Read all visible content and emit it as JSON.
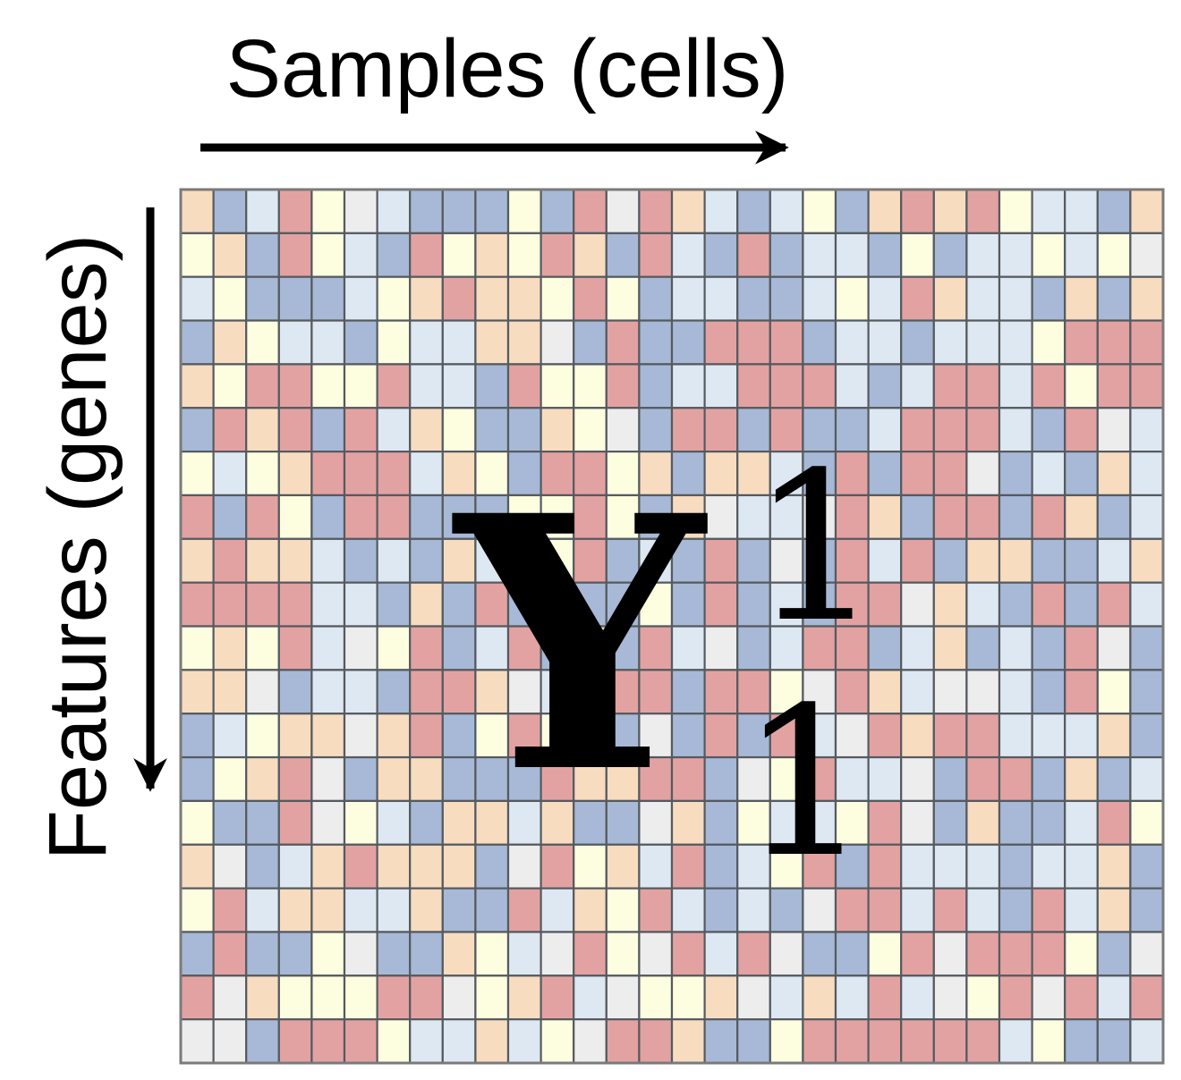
{
  "labels": {
    "x_axis": "Samples (cells)",
    "y_axis": "Features (genes)"
  },
  "matrix_symbol": {
    "base": "Y",
    "superscript": "1",
    "subscript": "1"
  },
  "matrix": {
    "rows": 20,
    "cols": 30,
    "palette": {
      "R": "#e3a2a2",
      "O": "#f8dcc0",
      "Y": "#fdfde0",
      "W": "#ededed",
      "L": "#dde8f2",
      "B": "#a7b9d6"
    },
    "cells": [
      "OBLRYWLBBBYBRWROLBLYBORORYLLBO",
      "YOBRYLBRYOYROBRLBRBLLBYBLLYLYW",
      "LYBBBLYOROOYRYBLLBBLYLROLLBOBO",
      "BOYLLBYLLOOWBRBBRRRBLLBLLLYRRR",
      "OYRRYYRLLBRYYRBLLRRRLBLRRLRYRR",
      "BRORBRLOYBBOYWBRRBRBBLRRRLBRWL",
      "YLYORRRLOYBRRYOBOOLBRBRRWBLBOL",
      "RBRYBRRBBBYYRYBOWLLWROBRRBROBL",
      "OROOLBLBOLYYRBLBRBWBRLRBOOBBLO",
      "RRRRLLBOBRBRBBYBRBLBRRWOLBRBRL",
      "YOYRLWYRBLRBOBRLWBLRRBLOBLBRWB",
      "OOWBLLBRROWLBRRBRRYWROLWWLBRYB",
      "BLYOOWORBYRYOBWBRBRLWRORRLLLOB",
      "BYORWBOOBBBROORRBWYRLLWBRRBOBL",
      "YBBRWYLBOOLOBBWOBYLLYRWBOBBLRY",
      "OWBLOROOOBWRYOLRBLYRBRLLLBLLOB",
      "YRLOOLLOBBRLOYRLBLBWRRLRLBRLOB",
      "BRBBYWBBOYLWRYWRLRWBBYRWRRRYBW",
      "RWOYYYRRWYORLWYYOWLOLRLWYRWRLR",
      "WWBRRRYLLOLYWRROBBYRRRRRRLYBBL"
    ]
  }
}
